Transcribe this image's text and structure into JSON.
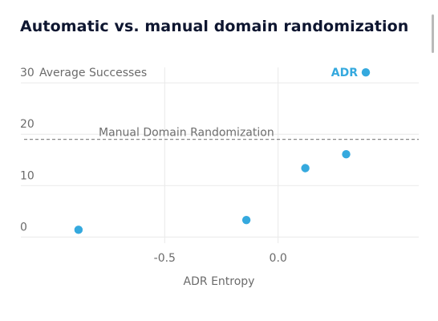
{
  "title": "Automatic vs. manual domain randomization",
  "chart_data": {
    "type": "scatter",
    "title": "Automatic vs. manual domain randomization",
    "xlabel": "ADR Entropy",
    "ylabel": "Average Successes",
    "x_ticks": [
      -0.5,
      0.0
    ],
    "x_tick_labels": [
      "-0.5",
      "0.0"
    ],
    "y_ticks": [
      0,
      10,
      20,
      30
    ],
    "y_tick_labels": [
      "0",
      "10",
      "20",
      "30"
    ],
    "xlim": [
      -1.12,
      0.62
    ],
    "ylim": [
      -1.2,
      33
    ],
    "grid": true,
    "series": [
      {
        "name": "ADR",
        "color": "#35a9de",
        "points": [
          {
            "x": -0.88,
            "y": 1.4
          },
          {
            "x": -0.14,
            "y": 3.3
          },
          {
            "x": 0.12,
            "y": 13.4
          },
          {
            "x": 0.3,
            "y": 16.1
          }
        ]
      }
    ],
    "reference_lines": [
      {
        "label": "Manual Domain Randomization",
        "y": 19,
        "style": "dashed",
        "color": "#888888"
      }
    ],
    "legend": {
      "position": "top-right",
      "label": "ADR"
    }
  }
}
